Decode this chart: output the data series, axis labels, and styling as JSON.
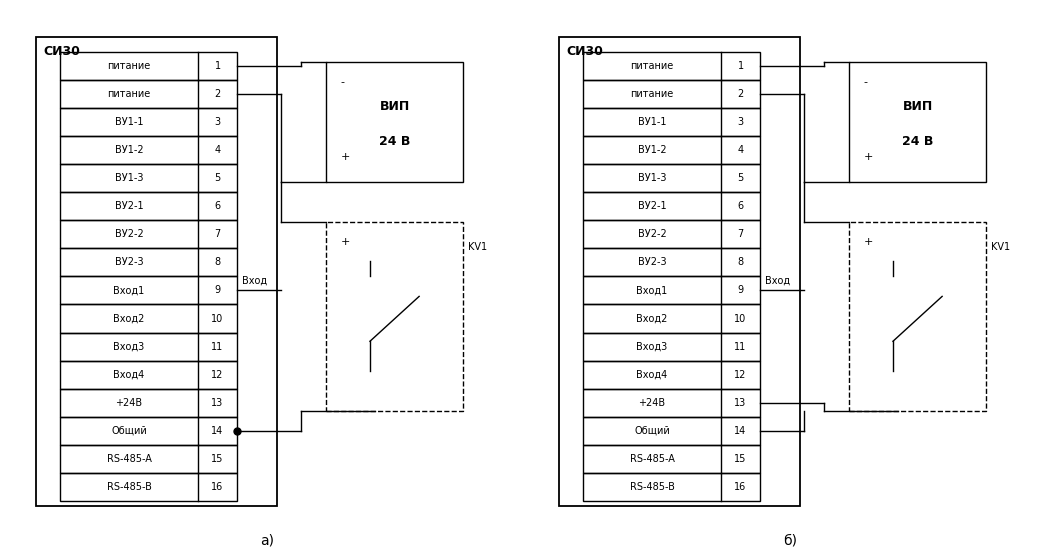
{
  "bg_color": "#ffffff",
  "line_color": "#000000",
  "rows": [
    "питание",
    "питание",
    "ВУ1-1",
    "ВУ1-2",
    "ВУ1-3",
    "ВУ2-1",
    "ВУ2-2",
    "ВУ2-3",
    "Вход1",
    "Вход2",
    "Вход3",
    "Вход4",
    "+24В",
    "Общий",
    "RS-485-A",
    "RS-485-B"
  ],
  "row_numbers": [
    1,
    2,
    3,
    4,
    5,
    6,
    7,
    8,
    9,
    10,
    11,
    12,
    13,
    14,
    15,
    16
  ],
  "label_a": "а)",
  "label_b": "б)",
  "si30_label": "СИ30",
  "vip_line1": "ВИП",
  "vip_line2": "24 В",
  "vhod_label": "Вход",
  "kv1_label": "KV1",
  "minus_label": "-",
  "plus_label": "+"
}
